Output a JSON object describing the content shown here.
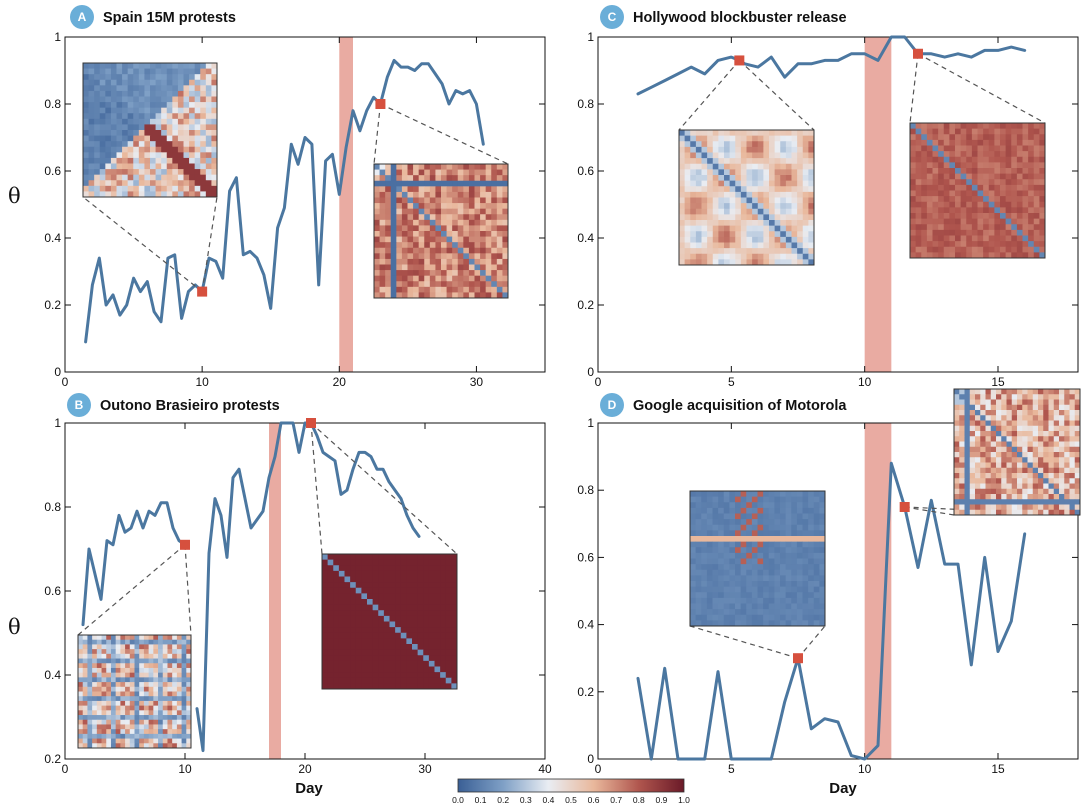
{
  "ylabel": "θ",
  "xlabel": "Day",
  "colors": {
    "line": "#4b77a0",
    "event_band": "#e9aba2",
    "marker": "#d6503e",
    "badge": "#6aaed8",
    "axis": "#111111"
  },
  "colorbar": {
    "ticks": [
      "0.0",
      "0.1",
      "0.2",
      "0.3",
      "0.4",
      "0.5",
      "0.6",
      "0.7",
      "0.8",
      "0.9",
      "1.0"
    ],
    "colormap": [
      "#3a5f95",
      "#7fa0c6",
      "#e9edf3",
      "#e9b89c",
      "#b0564e",
      "#6a1a28"
    ]
  },
  "chart_data": [
    {
      "panel": "A",
      "title": "Spain 15M protests",
      "type": "line",
      "xlim": [
        0,
        35
      ],
      "ylim": [
        0,
        1
      ],
      "xticks": [
        "0",
        "10",
        "20",
        "30"
      ],
      "yticks": [
        "0",
        "0.2",
        "0.4",
        "0.6",
        "0.8",
        "1"
      ],
      "event_band": [
        20,
        21
      ],
      "highlight_points": [
        [
          10,
          0.24
        ],
        [
          23,
          0.8
        ]
      ],
      "insets": [
        {
          "style": "mixed-blue",
          "point_index": 0
        },
        {
          "style": "red-cross",
          "point_index": 1
        }
      ],
      "series": [
        {
          "x": [
            1.5,
            2,
            2.5,
            3,
            3.5,
            4,
            4.5,
            5,
            5.5,
            6,
            6.5,
            7,
            7.5,
            8,
            8.5,
            9,
            9.5,
            10,
            10.5,
            11,
            11.5,
            12,
            12.5,
            13,
            13.5,
            14,
            14.5,
            15,
            15.5,
            16,
            16.5,
            17,
            17.5,
            18,
            18.5,
            19,
            19.5,
            20,
            20.5,
            21,
            21.5,
            22,
            22.5,
            23,
            23.5,
            24,
            24.5,
            25,
            25.5,
            26,
            26.5,
            27,
            27.5,
            28,
            28.5,
            29,
            29.5,
            30,
            30.5
          ],
          "y": [
            0.09,
            0.26,
            0.34,
            0.2,
            0.23,
            0.17,
            0.2,
            0.28,
            0.24,
            0.27,
            0.18,
            0.15,
            0.34,
            0.35,
            0.16,
            0.24,
            0.26,
            0.24,
            0.34,
            0.33,
            0.28,
            0.54,
            0.58,
            0.35,
            0.36,
            0.34,
            0.29,
            0.19,
            0.43,
            0.49,
            0.68,
            0.62,
            0.7,
            0.68,
            0.26,
            0.63,
            0.65,
            0.53,
            0.67,
            0.78,
            0.72,
            0.78,
            0.82,
            0.8,
            0.88,
            0.93,
            0.91,
            0.91,
            0.9,
            0.92,
            0.92,
            0.89,
            0.86,
            0.8,
            0.84,
            0.83,
            0.84,
            0.8,
            0.68
          ]
        }
      ]
    },
    {
      "panel": "B",
      "title": "Outono Brasieiro protests",
      "type": "line",
      "xlim": [
        0,
        40
      ],
      "ylim": [
        0.2,
        1
      ],
      "xticks": [
        "0",
        "10",
        "20",
        "30",
        "40"
      ],
      "yticks": [
        "0.2",
        "0.4",
        "0.6",
        "0.8",
        "1"
      ],
      "event_band": [
        17,
        18
      ],
      "highlight_points": [
        [
          10,
          0.71
        ],
        [
          20.5,
          1.0
        ]
      ],
      "insets": [
        {
          "style": "mixed-stripes",
          "point_index": 0
        },
        {
          "style": "uniform-dark",
          "point_index": 1
        }
      ],
      "series": [
        {
          "x": [
            1.5,
            2,
            2.5,
            3,
            3.5,
            4,
            4.5,
            5,
            5.5,
            6,
            6.5,
            7,
            7.5,
            8,
            8.5,
            9,
            9.5,
            10,
            10.5,
            11,
            11.5,
            12,
            12.5,
            13,
            13.5,
            14,
            14.5,
            15,
            15.5,
            16,
            16.5,
            17,
            17.5,
            18,
            18.5,
            19,
            19.5,
            20,
            20.5,
            21,
            21.5,
            22,
            22.5,
            23,
            23.5,
            24,
            24.5,
            25,
            25.5,
            26,
            26.5,
            27,
            27.5,
            28,
            28.5,
            29,
            29.5,
            30,
            30.5
          ],
          "y": [
            0.52,
            0.7,
            0.64,
            0.58,
            0.72,
            0.71,
            0.78,
            0.74,
            0.75,
            0.79,
            0.75,
            0.79,
            0.78,
            0.81,
            0.81,
            0.75,
            0.72,
            0.71,
            null,
            0.32,
            0.22,
            0.69,
            0.82,
            0.78,
            0.68,
            0.87,
            0.89,
            0.82,
            0.75,
            0.77,
            0.79,
            0.87,
            0.92,
            1.0,
            1.0,
            1.0,
            0.93,
            1.0,
            1.0,
            0.97,
            0.93,
            0.92,
            0.91,
            0.83,
            0.84,
            0.89,
            0.93,
            0.93,
            0.92,
            0.89,
            0.89,
            0.86,
            0.84,
            0.82,
            0.78,
            0.75,
            0.73,
            null,
            null
          ]
        }
      ]
    },
    {
      "panel": "C",
      "title": "Hollywood blockbuster release",
      "type": "line",
      "xlim": [
        0,
        18
      ],
      "ylim": [
        0,
        1
      ],
      "xticks": [
        "0",
        "5",
        "10",
        "15"
      ],
      "yticks": [
        "0",
        "0.2",
        "0.4",
        "0.6",
        "0.8",
        "1"
      ],
      "event_band": [
        10,
        11
      ],
      "highlight_points": [
        [
          5.3,
          0.93
        ],
        [
          12,
          0.95
        ]
      ],
      "insets": [
        {
          "style": "warm-blocks",
          "point_index": 0
        },
        {
          "style": "red-diagonal",
          "point_index": 1
        }
      ],
      "series": [
        {
          "x": [
            1.5,
            2,
            2.5,
            3,
            3.5,
            4,
            4.5,
            5,
            5.3,
            5.5,
            6,
            6.5,
            7,
            7.5,
            8,
            8.5,
            9,
            9.5,
            10,
            10.5,
            11,
            11.5,
            12,
            12.5,
            13,
            13.5,
            14,
            14.5,
            15,
            15.5,
            16
          ],
          "y": [
            0.83,
            0.85,
            0.87,
            0.89,
            0.91,
            0.89,
            0.93,
            0.94,
            0.93,
            0.92,
            0.91,
            0.94,
            0.88,
            0.92,
            0.92,
            0.93,
            0.93,
            0.95,
            0.95,
            0.93,
            1.0,
            1.0,
            0.95,
            0.95,
            0.94,
            0.95,
            0.94,
            0.96,
            0.96,
            0.97,
            0.96
          ]
        }
      ]
    },
    {
      "panel": "D",
      "title": "Google acquisition of Motorola",
      "type": "line",
      "xlim": [
        0,
        18
      ],
      "ylim": [
        0,
        1
      ],
      "xticks": [
        "0",
        "5",
        "10",
        "15"
      ],
      "yticks": [
        "0",
        "0.2",
        "0.4",
        "0.6",
        "0.8",
        "1"
      ],
      "event_band": [
        10,
        11
      ],
      "highlight_points": [
        [
          7.5,
          0.3
        ],
        [
          11.5,
          0.75
        ]
      ],
      "insets": [
        {
          "style": "blue-band",
          "point_index": 0
        },
        {
          "style": "mixed-cross",
          "point_index": 1
        }
      ],
      "series": [
        {
          "x": [
            1.5,
            2,
            2.5,
            3,
            3.5,
            4,
            4.5,
            5,
            5.5,
            6,
            6.5,
            7,
            7.5,
            8,
            8.5,
            9,
            9.5,
            10,
            10.5,
            11,
            11.5,
            12,
            12.5,
            13,
            13.5,
            14,
            14.5,
            15,
            15.5,
            16
          ],
          "y": [
            0.24,
            0.0,
            0.27,
            0.0,
            0.0,
            0.0,
            0.26,
            0.0,
            0.0,
            0.0,
            0.0,
            0.17,
            0.3,
            0.09,
            0.12,
            0.11,
            0.01,
            0.0,
            0.04,
            0.88,
            0.75,
            0.57,
            0.77,
            0.58,
            0.58,
            0.28,
            0.6,
            0.32,
            0.41,
            0.67
          ]
        }
      ]
    }
  ]
}
